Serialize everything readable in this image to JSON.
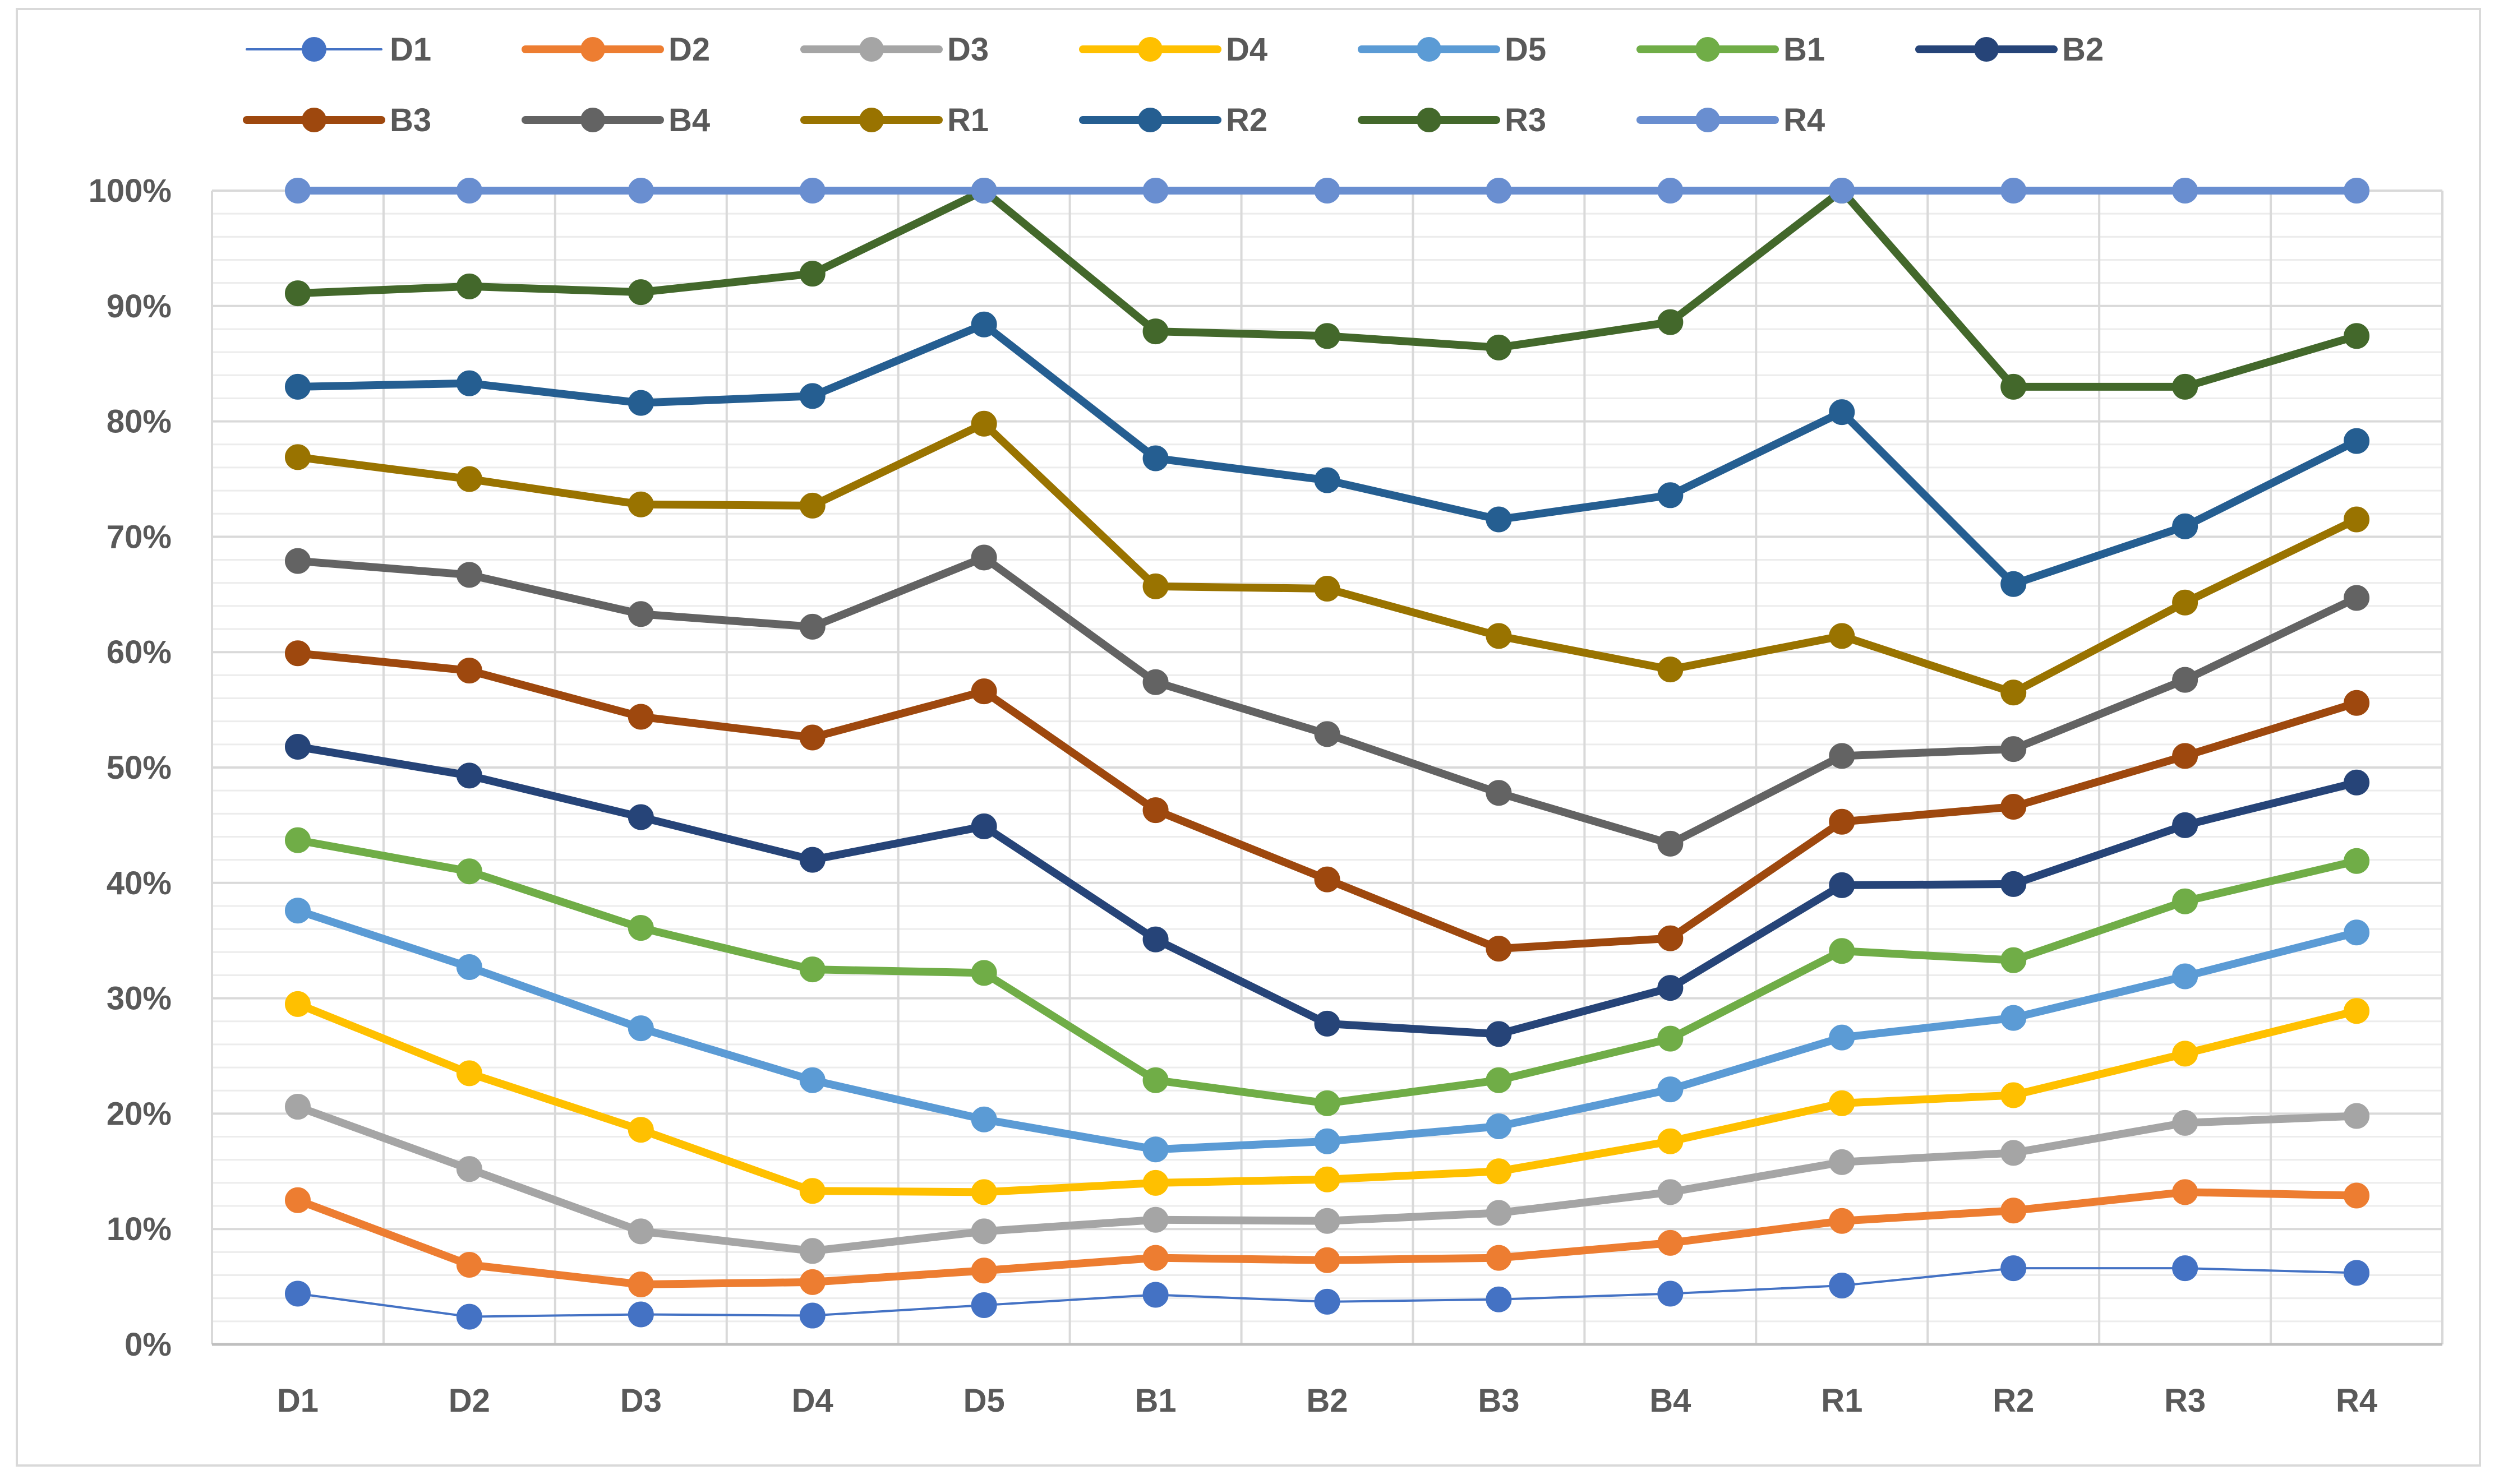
{
  "chart_data": {
    "type": "line",
    "title": "",
    "xlabel": "",
    "ylabel": "",
    "categories": [
      "D1",
      "D2",
      "D3",
      "D4",
      "D5",
      "B1",
      "B2",
      "B3",
      "B4",
      "R1",
      "R2",
      "R3",
      "R4"
    ],
    "ylim": [
      0,
      1
    ],
    "yticks": [
      0,
      0.1,
      0.2,
      0.3,
      0.4,
      0.5,
      0.6,
      0.7,
      0.8,
      0.9,
      1.0
    ],
    "ytick_labels": [
      "0%",
      "10%",
      "20%",
      "30%",
      "40%",
      "50%",
      "60%",
      "70%",
      "80%",
      "90%",
      "100%"
    ],
    "grid": true,
    "legend_position": "top",
    "series": [
      {
        "name": "D1",
        "color": "#4472c4",
        "thin": true,
        "values": [
          0.044,
          0.024,
          0.026,
          0.025,
          0.034,
          0.043,
          0.037,
          0.039,
          0.044,
          0.051,
          0.066,
          0.066,
          0.062
        ]
      },
      {
        "name": "D2",
        "color": "#ed7d31",
        "values": [
          0.125,
          0.069,
          0.052,
          0.054,
          0.064,
          0.075,
          0.073,
          0.075,
          0.088,
          0.107,
          0.116,
          0.132,
          0.129
        ]
      },
      {
        "name": "D3",
        "color": "#a5a5a5",
        "values": [
          0.206,
          0.152,
          0.098,
          0.081,
          0.098,
          0.108,
          0.107,
          0.114,
          0.132,
          0.158,
          0.166,
          0.192,
          0.198
        ]
      },
      {
        "name": "D4",
        "color": "#ffc000",
        "values": [
          0.295,
          0.235,
          0.186,
          0.133,
          0.132,
          0.14,
          0.143,
          0.15,
          0.176,
          0.209,
          0.216,
          0.252,
          0.289
        ]
      },
      {
        "name": "D5",
        "color": "#5b9bd5",
        "values": [
          0.376,
          0.327,
          0.274,
          0.229,
          0.195,
          0.169,
          0.176,
          0.189,
          0.221,
          0.266,
          0.283,
          0.319,
          0.357
        ]
      },
      {
        "name": "B1",
        "color": "#70ad47",
        "values": [
          0.437,
          0.41,
          0.361,
          0.325,
          0.322,
          0.229,
          0.209,
          0.229,
          0.265,
          0.341,
          0.333,
          0.384,
          0.419
        ]
      },
      {
        "name": "B2",
        "color": "#264478",
        "values": [
          0.518,
          0.493,
          0.457,
          0.42,
          0.449,
          0.351,
          0.278,
          0.269,
          0.309,
          0.398,
          0.399,
          0.45,
          0.487
        ]
      },
      {
        "name": "B3",
        "color": "#9e480e",
        "values": [
          0.599,
          0.584,
          0.544,
          0.526,
          0.566,
          0.463,
          0.403,
          0.343,
          0.352,
          0.453,
          0.466,
          0.51,
          0.556
        ]
      },
      {
        "name": "B4",
        "color": "#636363",
        "values": [
          0.679,
          0.667,
          0.633,
          0.622,
          0.682,
          0.574,
          0.529,
          0.478,
          0.434,
          0.51,
          0.516,
          0.576,
          0.647
        ]
      },
      {
        "name": "R1",
        "color": "#997300",
        "values": [
          0.769,
          0.75,
          0.728,
          0.727,
          0.798,
          0.657,
          0.655,
          0.614,
          0.585,
          0.614,
          0.565,
          0.643,
          0.715
        ]
      },
      {
        "name": "R2",
        "color": "#255e91",
        "values": [
          0.83,
          0.833,
          0.816,
          0.822,
          0.884,
          0.768,
          0.749,
          0.715,
          0.736,
          0.808,
          0.659,
          0.709,
          0.783
        ]
      },
      {
        "name": "R3",
        "color": "#43682b",
        "values": [
          0.911,
          0.917,
          0.912,
          0.928,
          1.0,
          0.878,
          0.874,
          0.864,
          0.886,
          1.0,
          0.83,
          0.83,
          0.874
        ]
      },
      {
        "name": "R4",
        "color": "#698ed0",
        "values": [
          1.0,
          1.0,
          1.0,
          1.0,
          1.0,
          1.0,
          1.0,
          1.0,
          1.0,
          1.0,
          1.0,
          1.0,
          1.0
        ]
      }
    ]
  }
}
